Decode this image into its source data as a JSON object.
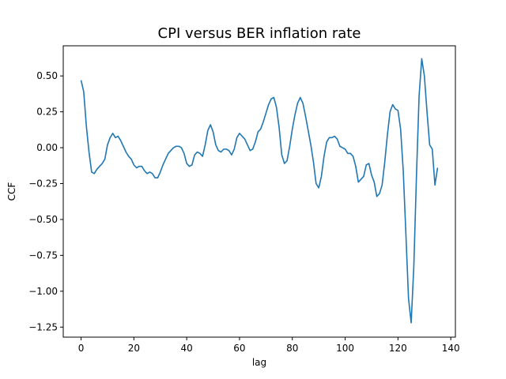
{
  "chart_data": {
    "type": "line",
    "title": "CPI versus BER inflation rate",
    "xlabel": "lag",
    "ylabel": "CCF",
    "xlim": [
      -6.75,
      141.75
    ],
    "ylim": [
      -1.32,
      0.71
    ],
    "xticks": [
      0,
      20,
      40,
      60,
      80,
      100,
      120,
      140
    ],
    "yticks": [
      -1.25,
      -1.0,
      -0.75,
      -0.5,
      -0.25,
      0.0,
      0.25,
      0.5
    ],
    "ytick_labels": [
      "−1.25",
      "−1.00",
      "−0.75",
      "−0.50",
      "−0.25",
      "0.00",
      "0.25",
      "0.50"
    ],
    "grid": false,
    "line_color": "#1f77b4",
    "series": [
      {
        "x": [
          0,
          1,
          2,
          3,
          4,
          5,
          6,
          7,
          8,
          9,
          10,
          11,
          12,
          13,
          14,
          15,
          16,
          17,
          18,
          19,
          20,
          21,
          22,
          23,
          24,
          25,
          26,
          27,
          28,
          29,
          30,
          31,
          32,
          33,
          34,
          35,
          36,
          37,
          38,
          39,
          40,
          41,
          42,
          43,
          44,
          45,
          46,
          47,
          48,
          49,
          50,
          51,
          52,
          53,
          54,
          55,
          56,
          57,
          58,
          59,
          60,
          61,
          62,
          63,
          64,
          65,
          66,
          67,
          68,
          69,
          70,
          71,
          72,
          73,
          74,
          75,
          76,
          77,
          78,
          79,
          80,
          81,
          82,
          83,
          84,
          85,
          86,
          87,
          88,
          89,
          90,
          91,
          92,
          93,
          94,
          95,
          96,
          97,
          98,
          99,
          100,
          101,
          102,
          103,
          104,
          105,
          106,
          107,
          108,
          109,
          110,
          111,
          112,
          113,
          114,
          115,
          116,
          117,
          118,
          119,
          120,
          121,
          122,
          123,
          124,
          125,
          126,
          127,
          128,
          129,
          130,
          131,
          132,
          133,
          134,
          135
        ],
        "y": [
          0.47,
          0.39,
          0.15,
          -0.03,
          -0.17,
          -0.18,
          -0.15,
          -0.13,
          -0.11,
          -0.08,
          0.02,
          0.07,
          0.1,
          0.07,
          0.08,
          0.05,
          0.01,
          -0.03,
          -0.06,
          -0.08,
          -0.12,
          -0.14,
          -0.13,
          -0.13,
          -0.16,
          -0.18,
          -0.17,
          -0.18,
          -0.21,
          -0.21,
          -0.17,
          -0.12,
          -0.08,
          -0.04,
          -0.02,
          0.0,
          0.01,
          0.01,
          0.0,
          -0.04,
          -0.11,
          -0.13,
          -0.12,
          -0.05,
          -0.03,
          -0.04,
          -0.06,
          0.02,
          0.12,
          0.16,
          0.11,
          0.02,
          -0.02,
          -0.03,
          -0.01,
          -0.01,
          -0.02,
          -0.05,
          -0.01,
          0.07,
          0.1,
          0.08,
          0.06,
          0.02,
          -0.02,
          -0.01,
          0.04,
          0.11,
          0.13,
          0.18,
          0.24,
          0.3,
          0.34,
          0.35,
          0.28,
          0.14,
          -0.05,
          -0.11,
          -0.09,
          0.01,
          0.13,
          0.23,
          0.31,
          0.35,
          0.31,
          0.22,
          0.12,
          0.02,
          -0.1,
          -0.25,
          -0.28,
          -0.2,
          -0.06,
          0.04,
          0.07,
          0.07,
          0.08,
          0.06,
          0.01,
          0.0,
          -0.01,
          -0.04,
          -0.04,
          -0.06,
          -0.13,
          -0.24,
          -0.22,
          -0.2,
          -0.12,
          -0.11,
          -0.19,
          -0.24,
          -0.34,
          -0.32,
          -0.26,
          -0.1,
          0.09,
          0.25,
          0.3,
          0.27,
          0.26,
          0.13,
          -0.16,
          -0.6,
          -1.05,
          -1.22,
          -0.83,
          -0.2,
          0.36,
          0.62,
          0.5,
          0.25,
          0.02,
          -0.01,
          -0.26,
          -0.14
        ]
      }
    ]
  }
}
